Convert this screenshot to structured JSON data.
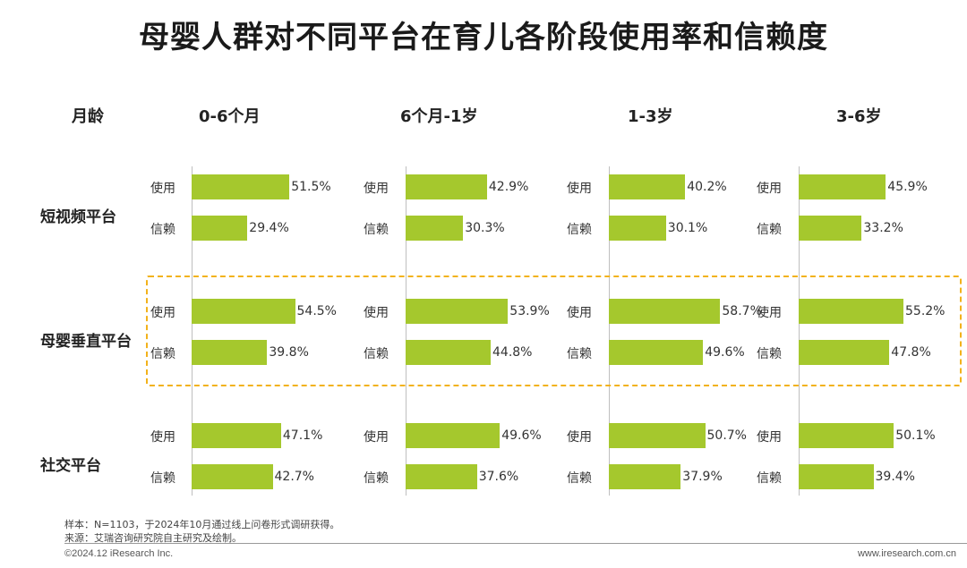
{
  "title": "母婴人群对不同平台在育儿各阶段使用率和信赖度",
  "chart_data": {
    "type": "bar",
    "orientation": "horizontal",
    "title": "母婴人群对不同平台在育儿各阶段使用率和信赖度",
    "corner_label": "月龄",
    "stages": [
      "0-6个月",
      "6个月-1岁",
      "1-3岁",
      "3-6岁"
    ],
    "platforms": [
      "短视频平台",
      "母婴垂直平台",
      "社交平台"
    ],
    "metrics": [
      "使用",
      "信赖"
    ],
    "values": [
      {
        "platform": "短视频平台",
        "使用": [
          51.5,
          42.9,
          40.2,
          45.9
        ],
        "信赖": [
          29.4,
          30.3,
          30.1,
          33.2
        ]
      },
      {
        "platform": "母婴垂直平台",
        "使用": [
          54.5,
          53.9,
          58.7,
          55.2
        ],
        "信赖": [
          39.8,
          44.8,
          49.6,
          47.8
        ]
      },
      {
        "platform": "社交平台",
        "使用": [
          47.1,
          49.6,
          50.7,
          50.1
        ],
        "信赖": [
          42.7,
          37.6,
          37.9,
          39.4
        ]
      }
    ],
    "unit": "%",
    "highlighted_platform": "母婴垂直平台",
    "bar_color": "#a5c82d",
    "highlight_color": "#f2b21b"
  },
  "footnote": {
    "sample": "样本：N=1103，于2024年10月通过线上问卷形式调研获得。",
    "source": "来源：艾瑞咨询研究院自主研究及绘制。"
  },
  "footer": {
    "copyright": "©2024.12 iResearch Inc.",
    "website": "www.iresearch.com.cn"
  }
}
